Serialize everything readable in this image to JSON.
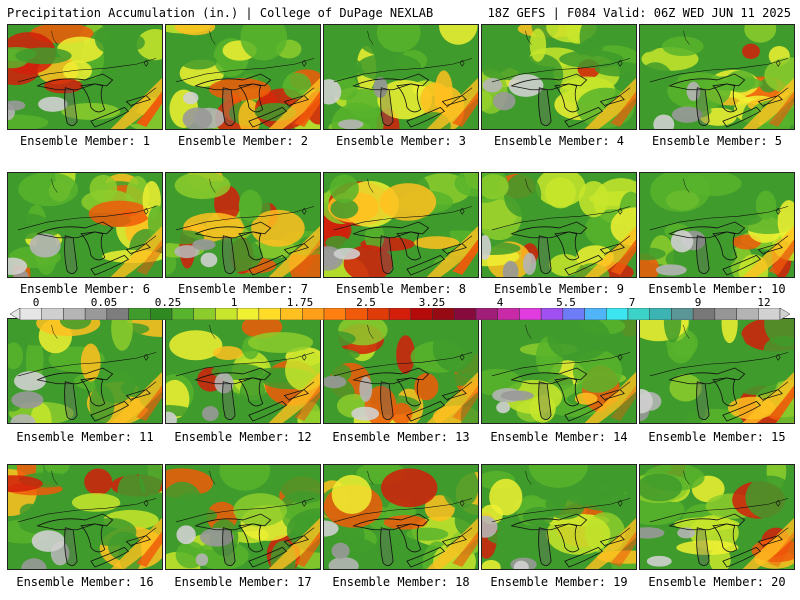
{
  "header": {
    "left": "Precipitation Accumulation (in.) | College of DuPage NEXLAB",
    "right": "18Z GEFS | F084 Valid: 06Z WED JUN 11 2025"
  },
  "panels": [
    {
      "label": "Ensemble Member: 1"
    },
    {
      "label": "Ensemble Member: 2"
    },
    {
      "label": "Ensemble Member: 3"
    },
    {
      "label": "Ensemble Member: 4"
    },
    {
      "label": "Ensemble Member: 5"
    },
    {
      "label": "Ensemble Member: 6"
    },
    {
      "label": "Ensemble Member: 7"
    },
    {
      "label": "Ensemble Member: 8"
    },
    {
      "label": "Ensemble Member: 9"
    },
    {
      "label": "Ensemble Member: 10"
    },
    {
      "label": "Ensemble Member: 11"
    },
    {
      "label": "Ensemble Member: 12"
    },
    {
      "label": "Ensemble Member: 13"
    },
    {
      "label": "Ensemble Member: 14"
    },
    {
      "label": "Ensemble Member: 15"
    },
    {
      "label": "Ensemble Member: 16"
    },
    {
      "label": "Ensemble Member: 17"
    },
    {
      "label": "Ensemble Member: 18"
    },
    {
      "label": "Ensemble Member: 19"
    },
    {
      "label": "Ensemble Member: 20"
    }
  ],
  "colorbar": {
    "ticks": [
      "0",
      "0.05",
      "0.25",
      "1",
      "1.75",
      "2.5",
      "3.25",
      "4",
      "5.5",
      "7",
      "9",
      "12"
    ],
    "colors": [
      "#e6e6e6",
      "#cfcfcf",
      "#b5b5b5",
      "#999999",
      "#7d7d7d",
      "#3f9b2c",
      "#2f8a22",
      "#58b42c",
      "#8ccc2c",
      "#c8e62c",
      "#f0f032",
      "#ffdc28",
      "#ffc020",
      "#ffa018",
      "#ff8010",
      "#f05a0a",
      "#e03c08",
      "#d21e0a",
      "#b40a0a",
      "#960a14",
      "#870a3c",
      "#a01e78",
      "#c82aa8",
      "#e03ce0",
      "#a050f0",
      "#6e7cf8",
      "#50b4f8",
      "#3ce6f0",
      "#3cd2c8",
      "#3cb4b4",
      "#5a9696",
      "#787878",
      "#969696",
      "#b4b4b4",
      "#d2d2d2"
    ]
  }
}
